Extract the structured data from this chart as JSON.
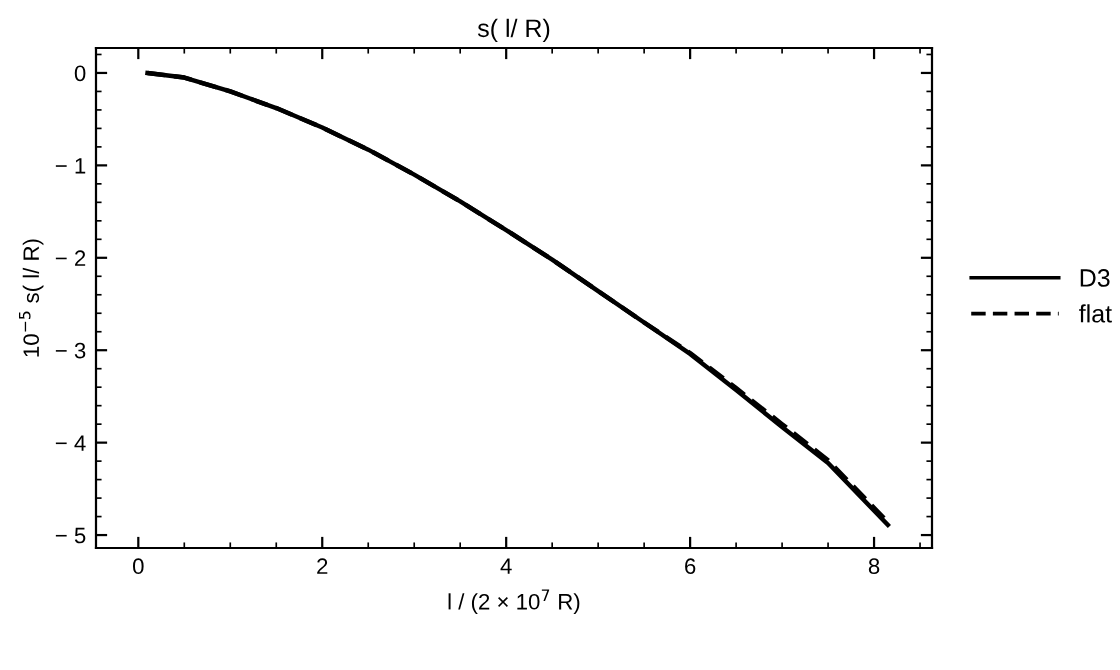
{
  "chart_data": {
    "type": "line",
    "title": "s( l/ R)",
    "xlabel": "l / (2 × 10$^{7}$ R)",
    "ylabel": "10$^{−5}$ s( l/ R)",
    "xlim": [
      -0.46,
      8.63
    ],
    "ylim": [
      -5.14,
      0.27
    ],
    "xticks": [
      0,
      2,
      4,
      6,
      8
    ],
    "yticks": [
      0,
      {
        "value": -1,
        "label": "− 1"
      },
      {
        "value": -2,
        "label": "− 2"
      },
      {
        "value": -3,
        "label": "− 3"
      },
      {
        "value": -4,
        "label": "− 4"
      },
      {
        "value": -5,
        "label": "− 5"
      }
    ],
    "grid": false,
    "legend": "right",
    "marker": "none",
    "series": [
      {
        "name": "D3",
        "color": "#000000",
        "line_style": "solid",
        "x": [
          0.1,
          0.5,
          1,
          1.5,
          2,
          2.5,
          3,
          3.5,
          4,
          4.5,
          5,
          5.5,
          6,
          6.5,
          7,
          7.5,
          8.15
        ],
        "values": [
          0,
          -0.05,
          -0.2,
          -0.38,
          -0.59,
          -0.83,
          -1.1,
          -1.39,
          -1.7,
          -2.02,
          -2.36,
          -2.7,
          -3.04,
          -3.43,
          -3.83,
          -4.22,
          -4.89
        ]
      },
      {
        "name": "flat",
        "color": "#000000",
        "line_style": "dashed",
        "x": [
          0.1,
          0.5,
          1,
          1.5,
          2,
          2.5,
          3,
          3.5,
          4,
          4.5,
          5,
          5.5,
          6,
          6.5,
          7,
          7.5,
          8.15
        ],
        "values": [
          0,
          -0.05,
          -0.2,
          -0.38,
          -0.59,
          -0.83,
          -1.1,
          -1.39,
          -1.7,
          -2.02,
          -2.36,
          -2.7,
          -3.03,
          -3.41,
          -3.8,
          -4.19,
          -4.86
        ]
      }
    ]
  }
}
